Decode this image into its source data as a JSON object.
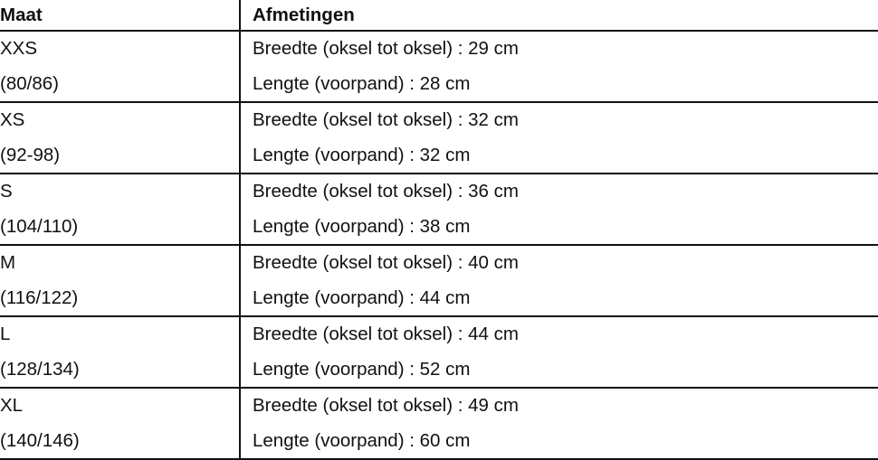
{
  "table": {
    "headers": [
      "Maat",
      "Afmetingen"
    ],
    "rows": [
      {
        "size": "XXS",
        "range": "(80/86)",
        "width": "Breedte (oksel tot oksel) : 29 cm",
        "length": "Lengte (voorpand) : 28 cm"
      },
      {
        "size": "XS",
        "range": "(92-98)",
        "width": "Breedte (oksel tot oksel) : 32 cm",
        "length": "Lengte (voorpand) : 32 cm"
      },
      {
        "size": "S",
        "range": "(104/110)",
        "width": "Breedte (oksel tot oksel) : 36 cm",
        "length": "Lengte (voorpand) : 38 cm"
      },
      {
        "size": "M",
        "range": "(116/122)",
        "width": "Breedte (oksel tot oksel) : 40 cm",
        "length": "Lengte (voorpand) : 44 cm"
      },
      {
        "size": "L",
        "range": "(128/134)",
        "width": "Breedte (oksel tot oksel) : 44 cm",
        "length": "Lengte (voorpand) : 52 cm"
      },
      {
        "size": "XL",
        "range": "(140/146)",
        "width": "Breedte (oksel tot oksel) : 49 cm",
        "length": "Lengte (voorpand) : 60 cm"
      }
    ]
  }
}
